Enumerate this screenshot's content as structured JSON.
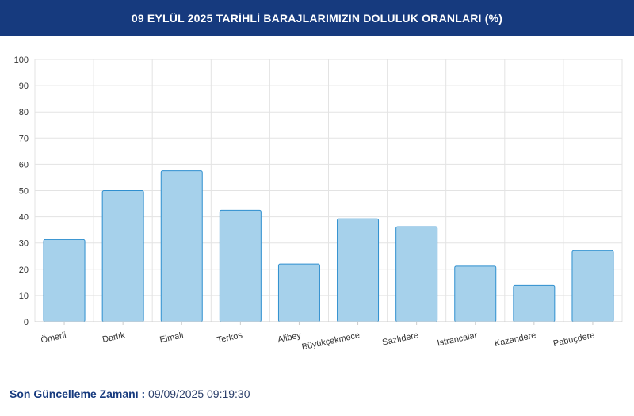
{
  "header": {
    "title": "09 EYLÜL 2025 TARİHLİ BARAJLARIMIZIN DOLULUK ORANLARI (%)"
  },
  "chart_data": {
    "type": "bar",
    "categories": [
      "Ömerli",
      "Darlık",
      "Elmalı",
      "Terkos",
      "Alibey",
      "Büyükçekmece",
      "Sazlıdere",
      "Istrancalar",
      "Kazandere",
      "Pabuçdere"
    ],
    "values": [
      31.3,
      50.0,
      57.5,
      42.5,
      22.0,
      39.2,
      36.2,
      21.2,
      13.8,
      27.1
    ],
    "ylim": [
      0,
      100
    ],
    "yticks": [
      0,
      10,
      20,
      30,
      40,
      50,
      60,
      70,
      80,
      90,
      100
    ],
    "grid": true,
    "bar_fill": "#a6d1eb",
    "bar_stroke": "#2f8fcf"
  },
  "footer": {
    "label": "Son Güncelleme Zamanı :",
    "value": "09/09/2025 09:19:30"
  }
}
